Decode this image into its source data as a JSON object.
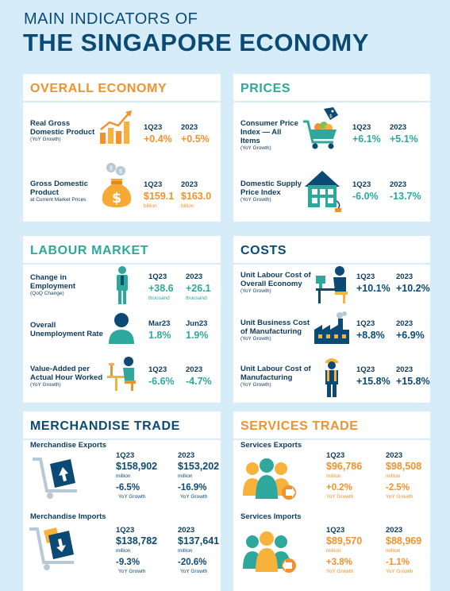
{
  "header": {
    "line1": "MAIN INDICATORS OF",
    "line2": "THE SINGAPORE ECONOMY"
  },
  "overall": {
    "title": "OVERALL ECONOMY",
    "gdp": {
      "label": "Real Gross Domestic Product",
      "sub": "(YoY Growth)",
      "p1": "1Q23",
      "p2": "2023",
      "v1": "+0.4%",
      "v2": "+0.5%"
    },
    "ngdp": {
      "label": "Gross Domestic Product",
      "sub": "at Current Market Prices",
      "p1": "1Q23",
      "p2": "2023",
      "v1": "$159.1",
      "v2": "$163.0",
      "u1": "billion",
      "u2": "billion"
    }
  },
  "prices": {
    "title": "PRICES",
    "cpi": {
      "label": "Consumer Price Index — All Items",
      "sub": "(YoY Growth)",
      "p1": "1Q23",
      "p2": "2023",
      "v1": "+6.1%",
      "v2": "+5.1%"
    },
    "dspi": {
      "label": "Domestic Supply Price Index",
      "sub": "(YoY Growth)",
      "p1": "1Q23",
      "p2": "2023",
      "v1": "-6.0%",
      "v2": "-13.7%"
    }
  },
  "labour": {
    "title": "LABOUR MARKET",
    "emp": {
      "label": "Change in Employment",
      "sub": "(QoQ Change)",
      "p1": "1Q23",
      "p2": "2023",
      "v1": "+38.6",
      "v2": "+26.1",
      "u1": "thousand",
      "u2": "thousand"
    },
    "unemp": {
      "label": "Overall Unemployment Rate",
      "p1": "Mar23",
      "p2": "Jun23",
      "v1": "1.8%",
      "v2": "1.9%"
    },
    "va": {
      "label": "Value-Added per Actual Hour Worked",
      "sub": "(YoY Growth)",
      "p1": "1Q23",
      "p2": "2023",
      "v1": "-6.6%",
      "v2": "-4.7%"
    }
  },
  "costs": {
    "title": "COSTS",
    "ulc": {
      "label": "Unit Labour Cost of Overall Economy",
      "sub": "(YoY Growth)",
      "p1": "1Q23",
      "p2": "2023",
      "v1": "+10.1%",
      "v2": "+10.2%"
    },
    "ubc": {
      "label": "Unit Business Cost of Manufacturing",
      "sub": "(YoY Growth)",
      "p1": "1Q23",
      "p2": "2023",
      "v1": "+8.8%",
      "v2": "+6.9%"
    },
    "ulcm": {
      "label": "Unit Labour Cost of Manufacturing",
      "sub": "(YoY Growth)",
      "p1": "1Q23",
      "p2": "2023",
      "v1": "+15.8%",
      "v2": "+15.8%"
    }
  },
  "merch": {
    "title": "MERCHANDISE TRADE",
    "exp": {
      "label": "Merchandise Exports",
      "p1": "1Q23",
      "p2": "2023",
      "v1": "$158,902",
      "v2": "$153,202",
      "u1": "million",
      "u2": "million",
      "g1": "-6.5%",
      "g2": "-16.9%",
      "gl": "YoY Growth"
    },
    "imp": {
      "label": "Merchandise Imports",
      "p1": "1Q23",
      "p2": "2023",
      "v1": "$138,782",
      "v2": "$137,641",
      "u1": "million",
      "u2": "million",
      "g1": "-9.3%",
      "g2": "-20.6%",
      "gl": "YoY Growth"
    }
  },
  "services": {
    "title": "SERVICES TRADE",
    "exp": {
      "label": "Services Exports",
      "p1": "1Q23",
      "p2": "2023",
      "v1": "$96,786",
      "v2": "$98,508",
      "u1": "million",
      "u2": "million",
      "g1": "+0.2%",
      "g2": "-2.5%",
      "gl": "YoY Growth"
    },
    "imp": {
      "label": "Services Imports",
      "p1": "1Q23",
      "p2": "2023",
      "v1": "$89,570",
      "v2": "$88,969",
      "u1": "million",
      "u2": "million",
      "g1": "+3.8%",
      "g2": "-1.1%",
      "gl": "YoY Growth"
    }
  },
  "colors": {
    "background": "#d6ecf8",
    "navy": "#0b4a74",
    "orange": "#f0922d",
    "teal": "#2ea89c"
  }
}
